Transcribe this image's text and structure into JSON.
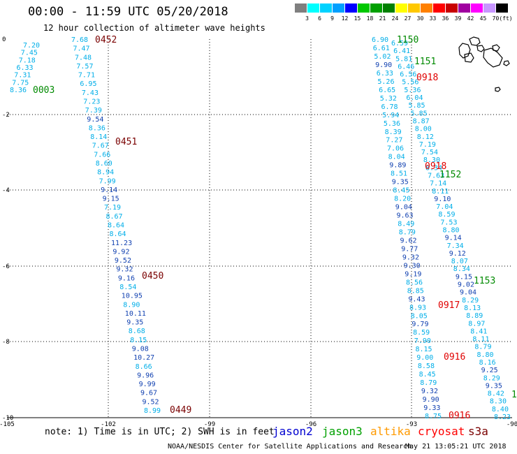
{
  "header": {
    "title": "00:00 - 11:59 UTC 05/20/2018",
    "subtitle": "12 hour collection of altimeter wave heights"
  },
  "scale": {
    "unit": "(ft)",
    "labels": [
      "3",
      "6",
      "9",
      "12",
      "15",
      "18",
      "21",
      "24",
      "27",
      "30",
      "33",
      "36",
      "39",
      "42",
      "45",
      "70"
    ],
    "colors": [
      "#7f7f7f",
      "#00ffff",
      "#00d2ff",
      "#00a0ff",
      "#0000ff",
      "#00c800",
      "#00a000",
      "#008000",
      "#ffff00",
      "#ffc800",
      "#ff8000",
      "#ff0000",
      "#c80000",
      "#a000a0",
      "#ff00ff",
      "#c896ff",
      "#000000"
    ]
  },
  "colors": {
    "lt": "#00aee8",
    "md": "#1040b0",
    "dk": "#0a0a9a",
    "time_jason3": "#008a00",
    "time_s3a": "#7a0000",
    "time_cryosat": "#e00000"
  },
  "axes": {
    "lon_ticks": [
      "-105",
      "-102",
      "-99",
      "-96",
      "-93",
      "-90"
    ],
    "lat_ticks": [
      "0",
      "-2",
      "-4",
      "-6",
      "-8",
      "-10"
    ]
  },
  "tracks": {
    "west_short": [
      {
        "v": "7.20",
        "c": "lt"
      },
      {
        "v": "7.45",
        "c": "lt"
      },
      {
        "v": "7.18",
        "c": "lt"
      },
      {
        "v": "6.33",
        "c": "lt"
      },
      {
        "v": "7.31",
        "c": "lt"
      },
      {
        "v": "7.75",
        "c": "lt"
      },
      {
        "v": "8.36",
        "c": "lt"
      }
    ],
    "west_long": [
      {
        "v": "7.68",
        "c": "lt"
      },
      {
        "v": "7.47",
        "c": "lt"
      },
      {
        "v": "7.48",
        "c": "lt"
      },
      {
        "v": "7.57",
        "c": "lt"
      },
      {
        "v": "7.71",
        "c": "lt"
      },
      {
        "v": "6.95",
        "c": "lt"
      },
      {
        "v": "7.43",
        "c": "lt"
      },
      {
        "v": "7.23",
        "c": "lt"
      },
      {
        "v": "7.39",
        "c": "lt"
      },
      {
        "v": "9.54",
        "c": "md"
      },
      {
        "v": "8.36",
        "c": "lt"
      },
      {
        "v": "8.14",
        "c": "lt"
      },
      {
        "v": "7.67",
        "c": "lt"
      },
      {
        "v": "7.66",
        "c": "lt"
      },
      {
        "v": "8.60",
        "c": "lt"
      },
      {
        "v": "8.94",
        "c": "lt"
      },
      {
        "v": "7.99",
        "c": "lt"
      },
      {
        "v": "9.14",
        "c": "md"
      },
      {
        "v": "9.15",
        "c": "md"
      },
      {
        "v": "7.19",
        "c": "lt"
      },
      {
        "v": "8.67",
        "c": "lt"
      },
      {
        "v": "8.64",
        "c": "lt"
      },
      {
        "v": "8.64",
        "c": "lt"
      },
      {
        "v": "11.23",
        "c": "md"
      },
      {
        "v": "9.92",
        "c": "md"
      },
      {
        "v": "9.52",
        "c": "md"
      },
      {
        "v": "9.32",
        "c": "md"
      },
      {
        "v": "9.16",
        "c": "md"
      },
      {
        "v": "8.54",
        "c": "lt"
      },
      {
        "v": "10.95",
        "c": "md"
      },
      {
        "v": "8.90",
        "c": "lt"
      },
      {
        "v": "10.11",
        "c": "md"
      },
      {
        "v": "9.35",
        "c": "md"
      },
      {
        "v": "8.68",
        "c": "lt"
      },
      {
        "v": "8.15",
        "c": "lt"
      },
      {
        "v": "9.08",
        "c": "md"
      },
      {
        "v": "10.27",
        "c": "md"
      },
      {
        "v": "8.66",
        "c": "lt"
      },
      {
        "v": "9.96",
        "c": "md"
      },
      {
        "v": "9.99",
        "c": "md"
      },
      {
        "v": "9.67",
        "c": "md"
      },
      {
        "v": "9.52",
        "c": "md"
      },
      {
        "v": "8.99",
        "c": "lt"
      }
    ],
    "east_a": [
      {
        "v": "6.90",
        "c": "lt"
      },
      {
        "v": "6.61",
        "c": "lt"
      },
      {
        "v": "5.02",
        "c": "lt"
      },
      {
        "v": "9.90",
        "c": "md"
      },
      {
        "v": "6.33",
        "c": "lt"
      },
      {
        "v": "5.26",
        "c": "lt"
      },
      {
        "v": "6.65",
        "c": "lt"
      },
      {
        "v": "5.32",
        "c": "lt"
      },
      {
        "v": "6.78",
        "c": "lt"
      },
      {
        "v": "5.94",
        "c": "lt"
      },
      {
        "v": "5.36",
        "c": "lt"
      },
      {
        "v": "8.39",
        "c": "lt"
      },
      {
        "v": "7.27",
        "c": "lt"
      },
      {
        "v": "7.06",
        "c": "lt"
      },
      {
        "v": "8.04",
        "c": "lt"
      },
      {
        "v": "9.89",
        "c": "md"
      },
      {
        "v": "8.51",
        "c": "lt"
      },
      {
        "v": "9.35",
        "c": "md"
      },
      {
        "v": "8.45",
        "c": "lt"
      },
      {
        "v": "8.20",
        "c": "lt"
      },
      {
        "v": "9.04",
        "c": "md"
      },
      {
        "v": "9.63",
        "c": "md"
      },
      {
        "v": "8.49",
        "c": "lt"
      },
      {
        "v": "8.79",
        "c": "lt"
      },
      {
        "v": "9.62",
        "c": "md"
      },
      {
        "v": "9.77",
        "c": "md"
      },
      {
        "v": "9.32",
        "c": "md"
      },
      {
        "v": "9.30",
        "c": "md"
      },
      {
        "v": "9.19",
        "c": "md"
      },
      {
        "v": "8.56",
        "c": "lt"
      },
      {
        "v": "8.85",
        "c": "lt"
      },
      {
        "v": "9.43",
        "c": "md"
      },
      {
        "v": "8.93",
        "c": "lt"
      },
      {
        "v": "8.05",
        "c": "lt"
      },
      {
        "v": "9.79",
        "c": "md"
      },
      {
        "v": "8.59",
        "c": "lt"
      },
      {
        "v": "7.90",
        "c": "lt"
      },
      {
        "v": "8.15",
        "c": "lt"
      },
      {
        "v": "9.00",
        "c": "lt"
      },
      {
        "v": "8.58",
        "c": "lt"
      },
      {
        "v": "8.45",
        "c": "lt"
      },
      {
        "v": "8.79",
        "c": "lt"
      },
      {
        "v": "9.32",
        "c": "md"
      },
      {
        "v": "9.90",
        "c": "md"
      },
      {
        "v": "9.33",
        "c": "md"
      },
      {
        "v": "8.75",
        "c": "lt"
      }
    ],
    "east_b": [
      {
        "v": "6.59",
        "c": "lt"
      },
      {
        "v": "6.41",
        "c": "lt"
      },
      {
        "v": "5.81",
        "c": "lt"
      },
      {
        "v": "6.46",
        "c": "lt"
      },
      {
        "v": "6.56",
        "c": "lt"
      },
      {
        "v": "5.56",
        "c": "lt"
      },
      {
        "v": "5.36",
        "c": "lt"
      },
      {
        "v": "6.04",
        "c": "lt"
      },
      {
        "v": "5.85",
        "c": "lt"
      },
      {
        "v": "5.85",
        "c": "lt"
      },
      {
        "v": "8.87",
        "c": "lt"
      },
      {
        "v": "8.00",
        "c": "lt"
      },
      {
        "v": "8.12",
        "c": "lt"
      },
      {
        "v": "7.19",
        "c": "lt"
      },
      {
        "v": "7.54",
        "c": "lt"
      },
      {
        "v": "8.30",
        "c": "lt"
      },
      {
        "v": "8.34",
        "c": "lt"
      },
      {
        "v": "7.63",
        "c": "lt"
      },
      {
        "v": "7.14",
        "c": "lt"
      },
      {
        "v": "8.11",
        "c": "lt"
      },
      {
        "v": "9.10",
        "c": "md"
      },
      {
        "v": "7.04",
        "c": "lt"
      },
      {
        "v": "8.59",
        "c": "lt"
      },
      {
        "v": "7.53",
        "c": "lt"
      },
      {
        "v": "8.80",
        "c": "lt"
      },
      {
        "v": "9.14",
        "c": "md"
      },
      {
        "v": "7.34",
        "c": "lt"
      },
      {
        "v": "9.12",
        "c": "md"
      },
      {
        "v": "8.07",
        "c": "lt"
      },
      {
        "v": "8.34",
        "c": "lt"
      },
      {
        "v": "9.15",
        "c": "md"
      },
      {
        "v": "9.02",
        "c": "md"
      },
      {
        "v": "9.04",
        "c": "md"
      },
      {
        "v": "8.29",
        "c": "lt"
      },
      {
        "v": "8.13",
        "c": "lt"
      },
      {
        "v": "8.89",
        "c": "lt"
      },
      {
        "v": "8.97",
        "c": "lt"
      },
      {
        "v": "8.41",
        "c": "lt"
      },
      {
        "v": "8.11",
        "c": "lt"
      },
      {
        "v": "8.79",
        "c": "lt"
      },
      {
        "v": "8.80",
        "c": "lt"
      },
      {
        "v": "8.16",
        "c": "lt"
      },
      {
        "v": "9.25",
        "c": "md"
      },
      {
        "v": "8.29",
        "c": "lt"
      },
      {
        "v": "9.35",
        "c": "md"
      },
      {
        "v": "8.42",
        "c": "lt"
      },
      {
        "v": "8.30",
        "c": "lt"
      },
      {
        "v": "8.40",
        "c": "lt"
      },
      {
        "v": "8.23",
        "c": "lt"
      }
    ]
  },
  "time_labels": [
    {
      "id": "t0003",
      "text": "0003",
      "c": "time_jason3"
    },
    {
      "id": "t0452",
      "text": "0452",
      "c": "time_s3a"
    },
    {
      "id": "t0451",
      "text": "0451",
      "c": "time_s3a"
    },
    {
      "id": "t0450",
      "text": "0450",
      "c": "time_s3a"
    },
    {
      "id": "t0449",
      "text": "0449",
      "c": "time_s3a"
    },
    {
      "id": "t1150",
      "text": "1150",
      "c": "time_jason3"
    },
    {
      "id": "t1151",
      "text": "1151",
      "c": "time_jason3"
    },
    {
      "id": "t1152",
      "text": "1152",
      "c": "time_jason3"
    },
    {
      "id": "t1153",
      "text": "1153",
      "c": "time_jason3"
    },
    {
      "id": "t0918a",
      "text": "0918",
      "c": "time_cryosat"
    },
    {
      "id": "t0918b",
      "text": "0918",
      "c": "time_cryosat"
    },
    {
      "id": "t0917",
      "text": "0917",
      "c": "time_cryosat"
    },
    {
      "id": "t0916a",
      "text": "0916",
      "c": "time_cryosat"
    },
    {
      "id": "t0916b",
      "text": "0916",
      "c": "time_cryosat"
    },
    {
      "id": "t1edge",
      "text": "1",
      "c": "time_jason3"
    }
  ],
  "legend": {
    "note": "note: 1) Time is in UTC; 2) SWH is in feet",
    "missions": [
      {
        "name": "jason2",
        "color": "#0000d0"
      },
      {
        "name": "jason3",
        "color": "#00a000"
      },
      {
        "name": "altika",
        "color": "#ff9a00"
      },
      {
        "name": "cryosat",
        "color": "#ff0000"
      },
      {
        "name": "s3a",
        "color": "#7a0000"
      }
    ]
  },
  "footer": {
    "credit": "NOAA/NESDIS Center for Satellite Applications and Research",
    "timestamp": "May 21 13:05:21 UTC 2018"
  }
}
